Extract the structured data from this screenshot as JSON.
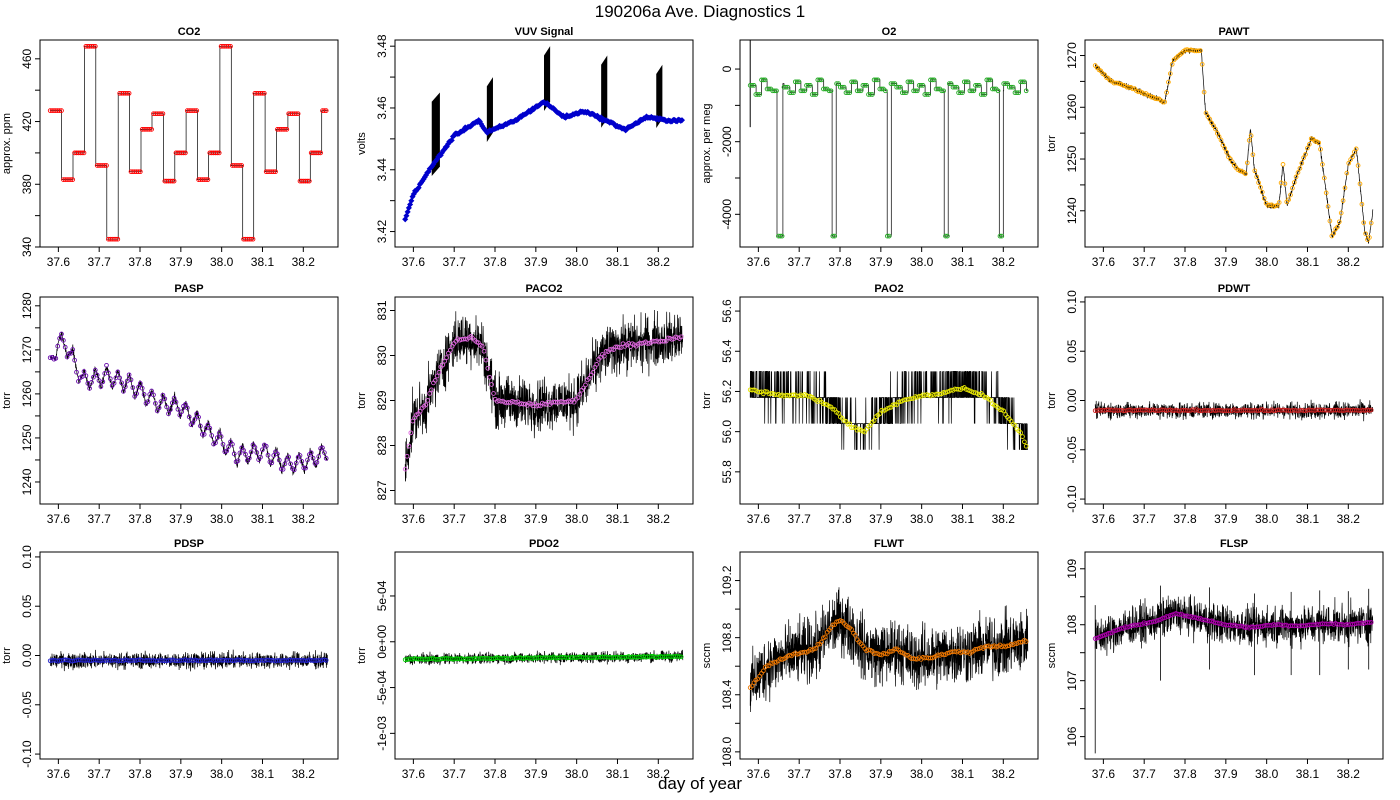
{
  "page": {
    "title": "190206a   Ave. Diagnostics 1",
    "xlabel": "day of year"
  },
  "chart_data": [
    {
      "type": "line",
      "title": "CO2",
      "ylabel": "approx. ppm",
      "xlim": [
        37.555,
        38.285
      ],
      "ylim": [
        340,
        472
      ],
      "yticks": [
        340,
        380,
        420,
        460
      ],
      "minor_yticks": [
        360,
        400,
        440
      ],
      "xticks": [
        37.6,
        37.7,
        37.8,
        37.9,
        38.0,
        38.1,
        38.2
      ],
      "x": [
        37.58,
        38.26
      ],
      "pattern": "square",
      "cycle_days": 0.0277,
      "period_days": 0.0277,
      "levels": [
        427,
        383,
        400,
        468,
        392,
        345,
        438,
        388,
        415,
        425,
        382,
        400
      ],
      "raw_noise": 0,
      "mean_noise": 0,
      "marker": "circle",
      "marker_color": "#ff0000",
      "marker_step_days": 0.0046
    },
    {
      "type": "line",
      "title": "VUV Signal",
      "ylabel": "volts",
      "xlim": [
        37.555,
        38.285
      ],
      "ylim": [
        3.415,
        3.482
      ],
      "yticks": [
        3.42,
        3.44,
        3.46,
        3.48
      ],
      "minor_yticks": [
        3.43,
        3.45,
        3.47
      ],
      "xticks": [
        37.6,
        37.7,
        37.8,
        37.9,
        38.0,
        38.1,
        38.2
      ],
      "x": [
        37.58,
        38.26
      ],
      "baseline": [
        [
          37.58,
          3.424
        ],
        [
          37.6,
          3.432
        ],
        [
          37.65,
          3.442
        ],
        [
          37.7,
          3.451
        ],
        [
          37.76,
          3.456
        ],
        [
          37.78,
          3.452
        ],
        [
          37.85,
          3.456
        ],
        [
          37.92,
          3.462
        ],
        [
          37.97,
          3.457
        ],
        [
          38.02,
          3.459
        ],
        [
          38.07,
          3.456
        ],
        [
          38.12,
          3.453
        ],
        [
          38.17,
          3.457
        ],
        [
          38.22,
          3.456
        ],
        [
          38.26,
          3.456
        ]
      ],
      "spikes": [
        [
          37.645,
          37.665,
          3.465
        ],
        [
          37.78,
          37.795,
          3.47
        ],
        [
          37.92,
          37.935,
          3.48
        ],
        [
          38.06,
          38.075,
          3.477
        ],
        [
          38.195,
          38.21,
          3.474
        ]
      ],
      "raw_noise": 0.001,
      "mean_noise": 0.0006,
      "marker": "diamond",
      "marker_color": "#0000cc",
      "marker_step_days": 0.003
    },
    {
      "type": "line",
      "title": "O2",
      "ylabel": "approx. per meg",
      "xlim": [
        37.555,
        38.285
      ],
      "ylim": [
        -4900,
        800
      ],
      "yticks": [
        0,
        -2000,
        -4000
      ],
      "minor_yticks": [
        -1000,
        -3000
      ],
      "xticks": [
        37.6,
        37.7,
        37.8,
        37.9,
        38.0,
        38.1,
        38.2
      ],
      "x": [
        37.58,
        38.26
      ],
      "pattern": "steps_with_dips",
      "period_days": 0.0138,
      "levels": [
        -450,
        -700,
        -300,
        -550,
        -600,
        -400,
        -500,
        -650,
        -350,
        -600
      ],
      "dips": [
        [
          37.645,
          37.66,
          -4600
        ],
        [
          37.78,
          37.79,
          -4600
        ],
        [
          37.915,
          37.925,
          -4600
        ],
        [
          38.055,
          38.065,
          -4600
        ],
        [
          38.19,
          38.2,
          -4600
        ]
      ],
      "start_spike": [
        37.58,
        800,
        -1600
      ],
      "raw_noise": 0,
      "mean_noise": 0,
      "marker": "circle",
      "marker_color": "#22aa22",
      "marker_step_days": 0.0046
    },
    {
      "type": "line",
      "title": "PAWT",
      "ylabel": "torr",
      "xlim": [
        37.555,
        38.285
      ],
      "ylim": [
        1233,
        1273
      ],
      "yticks": [
        1240,
        1250,
        1260,
        1270
      ],
      "minor_yticks": [
        1245,
        1255,
        1265
      ],
      "xticks": [
        37.6,
        37.7,
        37.8,
        37.9,
        38.0,
        38.1,
        38.2
      ],
      "x": [
        37.58,
        38.26
      ],
      "baseline": [
        [
          37.58,
          1268
        ],
        [
          37.62,
          1265
        ],
        [
          37.66,
          1264
        ],
        [
          37.72,
          1262
        ],
        [
          37.75,
          1261
        ],
        [
          37.77,
          1269
        ],
        [
          37.8,
          1271
        ],
        [
          37.84,
          1271
        ],
        [
          37.85,
          1259
        ],
        [
          37.88,
          1255
        ],
        [
          37.91,
          1250
        ],
        [
          37.93,
          1248
        ],
        [
          37.95,
          1247
        ],
        [
          37.96,
          1256
        ],
        [
          37.97,
          1248
        ],
        [
          38.0,
          1241
        ],
        [
          38.03,
          1241
        ],
        [
          38.04,
          1249
        ],
        [
          38.05,
          1241
        ],
        [
          38.07,
          1246
        ],
        [
          38.09,
          1250
        ],
        [
          38.11,
          1254
        ],
        [
          38.13,
          1253
        ],
        [
          38.16,
          1235
        ],
        [
          38.18,
          1238
        ],
        [
          38.2,
          1249
        ],
        [
          38.22,
          1252
        ],
        [
          38.24,
          1236
        ],
        [
          38.25,
          1234
        ],
        [
          38.26,
          1240
        ]
      ],
      "raw_noise": 0.8,
      "mean_noise": 0.3,
      "marker": "circle",
      "marker_color": "#ffaa00",
      "marker_step_days": 0.0046
    },
    {
      "type": "line",
      "title": "PASP",
      "ylabel": "torr",
      "xlim": [
        37.555,
        38.285
      ],
      "ylim": [
        1235,
        1282
      ],
      "yticks": [
        1240,
        1250,
        1260,
        1270,
        1280
      ],
      "minor_yticks": [
        1245,
        1255,
        1265,
        1275
      ],
      "xticks": [
        37.6,
        37.7,
        37.8,
        37.9,
        38.0,
        38.1,
        38.2
      ],
      "x": [
        37.58,
        38.26
      ],
      "baseline": [
        [
          37.58,
          1266
        ],
        [
          37.6,
          1272
        ],
        [
          37.62,
          1271
        ],
        [
          37.66,
          1263
        ],
        [
          37.72,
          1264
        ],
        [
          37.78,
          1262
        ],
        [
          37.84,
          1258
        ],
        [
          37.9,
          1257
        ],
        [
          37.96,
          1252
        ],
        [
          38.0,
          1249
        ],
        [
          38.04,
          1246
        ],
        [
          38.1,
          1247
        ],
        [
          38.16,
          1244
        ],
        [
          38.22,
          1245
        ],
        [
          38.26,
          1247
        ]
      ],
      "pattern": "sawtooth",
      "period_days": 0.0277,
      "amplitude": 9,
      "raw_noise": 1.2,
      "mean_noise": 0.6,
      "marker": "circle",
      "marker_color": "#6a0dad",
      "marker_step_days": 0.0046
    },
    {
      "type": "line",
      "title": "PACO2",
      "ylabel": "torr",
      "xlim": [
        37.555,
        38.285
      ],
      "ylim": [
        826.7,
        831.3
      ],
      "yticks": [
        827,
        828,
        829,
        830,
        831
      ],
      "minor_yticks": [],
      "xticks": [
        37.6,
        37.7,
        37.8,
        37.9,
        38.0,
        38.1,
        38.2
      ],
      "x": [
        37.58,
        38.26
      ],
      "baseline": [
        [
          37.58,
          827.5
        ],
        [
          37.6,
          828.6
        ],
        [
          37.63,
          828.9
        ],
        [
          37.66,
          829.6
        ],
        [
          37.7,
          830.3
        ],
        [
          37.74,
          830.4
        ],
        [
          37.77,
          830.2
        ],
        [
          37.79,
          829.4
        ],
        [
          37.8,
          829.0
        ],
        [
          37.9,
          828.9
        ],
        [
          38.0,
          829.0
        ],
        [
          38.03,
          829.5
        ],
        [
          38.06,
          830.0
        ],
        [
          38.1,
          830.2
        ],
        [
          38.18,
          830.3
        ],
        [
          38.26,
          830.4
        ]
      ],
      "raw_noise": 0.85,
      "mean_noise": 0.06,
      "marker": "circle",
      "marker_color": "#dd66dd",
      "marker_step_days": 0.0046
    },
    {
      "type": "line",
      "title": "PAO2",
      "ylabel": "torr",
      "xlim": [
        37.555,
        38.285
      ],
      "ylim": [
        55.64,
        56.67
      ],
      "yticks": [
        55.8,
        56.0,
        56.2,
        56.4,
        56.6
      ],
      "minor_yticks": [],
      "xticks": [
        37.6,
        37.7,
        37.8,
        37.9,
        38.0,
        38.1,
        38.2
      ],
      "x": [
        37.58,
        38.26
      ],
      "baseline": [
        [
          37.58,
          56.21
        ],
        [
          37.65,
          56.18
        ],
        [
          37.72,
          56.18
        ],
        [
          37.78,
          56.12
        ],
        [
          37.83,
          56.02
        ],
        [
          37.86,
          56.0
        ],
        [
          37.9,
          56.1
        ],
        [
          37.95,
          56.15
        ],
        [
          38.0,
          56.18
        ],
        [
          38.05,
          56.19
        ],
        [
          38.1,
          56.22
        ],
        [
          38.15,
          56.18
        ],
        [
          38.2,
          56.1
        ],
        [
          38.24,
          56.0
        ],
        [
          38.26,
          55.92
        ]
      ],
      "pattern": "quantized",
      "quantum": 0.13,
      "raw_noise": 0.15,
      "mean_noise": 0.01,
      "marker": "circle",
      "marker_color": "#e8e800",
      "marker_step_days": 0.0046
    },
    {
      "type": "line",
      "title": "PDWT",
      "ylabel": "torr",
      "xlim": [
        37.555,
        38.285
      ],
      "ylim": [
        -0.105,
        0.105
      ],
      "yticks": [
        -0.1,
        -0.05,
        0.0,
        0.05,
        0.1
      ],
      "minor_yticks": [],
      "xticks": [
        37.6,
        37.7,
        37.8,
        37.9,
        38.0,
        38.1,
        38.2
      ],
      "x": [
        37.58,
        38.26
      ],
      "baseline": [
        [
          37.58,
          -0.01
        ],
        [
          38.26,
          -0.01
        ]
      ],
      "raw_noise": 0.012,
      "mean_noise": 0.001,
      "marker": "circle",
      "marker_color": "#cc2222",
      "marker_step_days": 0.0046
    },
    {
      "type": "line",
      "title": "PDSP",
      "ylabel": "torr",
      "xlim": [
        37.555,
        38.285
      ],
      "ylim": [
        -0.105,
        0.105
      ],
      "yticks": [
        -0.1,
        -0.05,
        0.0,
        0.05,
        0.1
      ],
      "minor_yticks": [],
      "xticks": [
        37.6,
        37.7,
        37.8,
        37.9,
        38.0,
        38.1,
        38.2
      ],
      "x": [
        37.58,
        38.26
      ],
      "baseline": [
        [
          37.58,
          -0.005
        ],
        [
          38.26,
          -0.005
        ]
      ],
      "raw_noise": 0.012,
      "mean_noise": 0.001,
      "marker": "circle",
      "marker_color": "#2222cc",
      "marker_step_days": 0.0046
    },
    {
      "type": "line",
      "title": "PDO2",
      "ylabel": "torr",
      "xlim": [
        37.555,
        38.285
      ],
      "ylim": [
        -0.00128,
        0.00098
      ],
      "yticks": [
        -0.001,
        -0.0005,
        0.0,
        0.0005
      ],
      "ytick_labels": [
        "-1e-03",
        "-5e-04",
        "0e+00",
        "5e-04"
      ],
      "minor_yticks": [],
      "xticks": [
        37.6,
        37.7,
        37.8,
        37.9,
        38.0,
        38.1,
        38.2
      ],
      "x": [
        37.58,
        38.26
      ],
      "baseline": [
        [
          37.58,
          -0.00019
        ],
        [
          38.26,
          -0.00016
        ]
      ],
      "raw_noise": 9e-05,
      "mean_noise": 1e-05,
      "marker": "circle",
      "marker_color": "#00cc00",
      "marker_step_days": 0.0046
    },
    {
      "type": "line",
      "title": "FLWT",
      "ylabel": "sccm",
      "xlim": [
        37.555,
        38.285
      ],
      "ylim": [
        107.95,
        109.4
      ],
      "yticks": [
        108.0,
        108.4,
        108.8,
        109.2
      ],
      "minor_yticks": [
        108.2,
        108.6,
        109.0
      ],
      "xticks": [
        37.6,
        37.7,
        37.8,
        37.9,
        38.0,
        38.1,
        38.2
      ],
      "x": [
        37.58,
        38.26
      ],
      "baseline": [
        [
          37.58,
          108.45
        ],
        [
          37.62,
          108.6
        ],
        [
          37.68,
          108.68
        ],
        [
          37.74,
          108.72
        ],
        [
          37.78,
          108.88
        ],
        [
          37.8,
          108.92
        ],
        [
          37.83,
          108.85
        ],
        [
          37.86,
          108.72
        ],
        [
          37.9,
          108.68
        ],
        [
          37.94,
          108.72
        ],
        [
          37.98,
          108.65
        ],
        [
          38.02,
          108.66
        ],
        [
          38.08,
          108.7
        ],
        [
          38.12,
          108.7
        ],
        [
          38.16,
          108.74
        ],
        [
          38.2,
          108.74
        ],
        [
          38.26,
          108.78
        ]
      ],
      "raw_noise": 0.32,
      "mean_noise": 0.015,
      "marker": "circle",
      "marker_color": "#ee7700",
      "marker_step_days": 0.0046
    },
    {
      "type": "line",
      "title": "FLSP",
      "ylabel": "sccm",
      "xlim": [
        37.555,
        38.285
      ],
      "ylim": [
        105.6,
        109.3
      ],
      "yticks": [
        106.0,
        107.0,
        108.0,
        109.0
      ],
      "minor_yticks": [
        106.5,
        107.5,
        108.5
      ],
      "xticks": [
        37.6,
        37.7,
        37.8,
        37.9,
        38.0,
        38.1,
        38.2
      ],
      "x": [
        37.58,
        38.26
      ],
      "baseline": [
        [
          37.58,
          107.75
        ],
        [
          37.65,
          107.95
        ],
        [
          37.72,
          108.05
        ],
        [
          37.78,
          108.2
        ],
        [
          37.84,
          108.1
        ],
        [
          37.9,
          108.0
        ],
        [
          37.96,
          107.95
        ],
        [
          38.02,
          108.0
        ],
        [
          38.08,
          107.98
        ],
        [
          38.14,
          108.02
        ],
        [
          38.2,
          108.0
        ],
        [
          38.26,
          108.05
        ]
      ],
      "downspikes": [
        [
          37.58,
          105.7
        ],
        [
          37.74,
          107.0
        ],
        [
          37.86,
          107.2
        ],
        [
          37.97,
          107.1
        ],
        [
          38.06,
          107.1
        ],
        [
          38.13,
          107.1
        ],
        [
          38.2,
          107.2
        ],
        [
          38.25,
          107.2
        ]
      ],
      "raw_noise": 0.5,
      "mean_noise": 0.02,
      "marker": "circle",
      "marker_color": "#aa00aa",
      "marker_step_days": 0.0046
    }
  ]
}
